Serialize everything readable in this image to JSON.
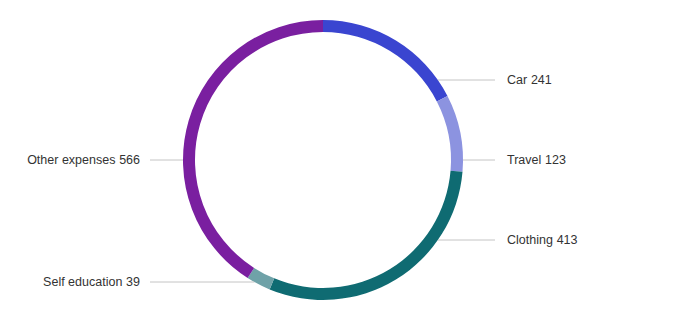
{
  "chart_data": {
    "type": "pie",
    "categories": [
      "Car",
      "Travel",
      "Clothing",
      "Self education",
      "Other expenses"
    ],
    "values": [
      241,
      123,
      413,
      39,
      566
    ],
    "colors": [
      "#3a45d0",
      "#8c93e0",
      "#0f6b72",
      "#6fa2a8",
      "#7a1fa0"
    ],
    "data_labels": true
  }
}
